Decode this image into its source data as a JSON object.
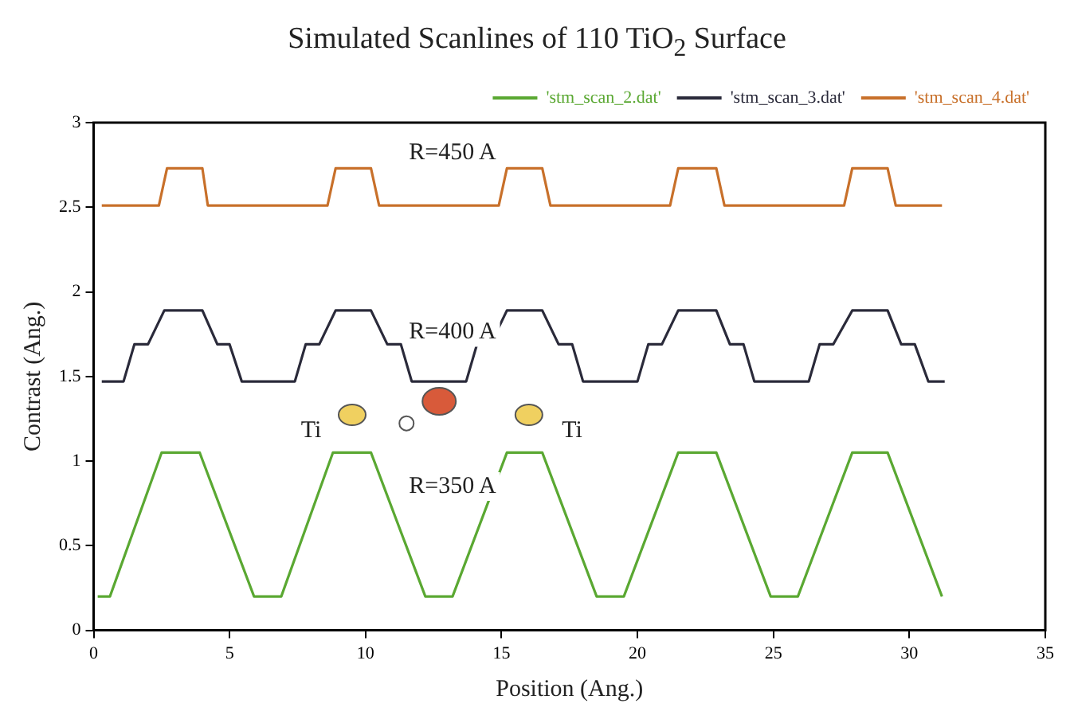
{
  "chart_data": {
    "type": "line",
    "title": "Simulated Scanlines of 110 TiO$_{2}$ Surface",
    "xlabel": "Position (Ang.)",
    "ylabel": "Contrast (Ang.)",
    "xlim": [
      0,
      35
    ],
    "xticks": [
      0,
      5,
      10,
      15,
      20,
      25,
      30,
      35
    ],
    "ylim": [
      0,
      3
    ],
    "yticks": [
      0,
      0.5,
      1,
      1.5,
      2,
      2.5,
      3
    ],
    "grid": false,
    "legend": "top right",
    "marker": "none",
    "line_style": "solid",
    "annotations": [
      "R=450 A",
      "R=400 A",
      "R=350 A",
      "Ti",
      "Ti"
    ],
    "series": [
      {
        "name": "'stm_scan_2.dat'",
        "color": "#5aa832",
        "x": [
          0.15,
          0.6,
          2.5,
          3.9,
          5.9,
          6.9,
          8.8,
          10.2,
          12.2,
          13.2,
          15.2,
          16.5,
          18.5,
          19.5,
          21.5,
          22.9,
          24.9,
          25.9,
          27.9,
          29.2,
          31.2
        ],
        "values": [
          0.2,
          0.2,
          1.05,
          1.05,
          0.2,
          0.2,
          1.05,
          1.05,
          0.2,
          0.2,
          1.05,
          1.05,
          0.2,
          0.2,
          1.05,
          1.05,
          0.2,
          0.2,
          1.05,
          1.05,
          0.2
        ]
      },
      {
        "name": "'stm_scan_3.dat'",
        "color": "#2a2a3a",
        "x": [
          0.3,
          1.1,
          1.5,
          2.0,
          2.6,
          4.0,
          4.55,
          5.0,
          5.45,
          7.4,
          7.8,
          8.3,
          8.9,
          10.2,
          10.8,
          11.3,
          11.7,
          13.7,
          14.1,
          14.6,
          15.2,
          16.5,
          17.1,
          17.6,
          18.0,
          20.0,
          20.4,
          20.9,
          21.5,
          22.9,
          23.4,
          23.9,
          24.3,
          26.3,
          26.7,
          27.2,
          27.9,
          29.2,
          29.7,
          30.2,
          30.7,
          31.3
        ],
        "values": [
          1.47,
          1.47,
          1.69,
          1.69,
          1.89,
          1.89,
          1.69,
          1.69,
          1.47,
          1.47,
          1.69,
          1.69,
          1.89,
          1.89,
          1.69,
          1.69,
          1.47,
          1.47,
          1.69,
          1.69,
          1.89,
          1.89,
          1.69,
          1.69,
          1.47,
          1.47,
          1.69,
          1.69,
          1.89,
          1.89,
          1.69,
          1.69,
          1.47,
          1.47,
          1.69,
          1.69,
          1.89,
          1.89,
          1.69,
          1.69,
          1.47,
          1.47
        ]
      },
      {
        "name": "'stm_scan_4.dat'",
        "color": "#c8702a",
        "x": [
          0.3,
          2.4,
          2.7,
          4.0,
          4.2,
          8.6,
          8.9,
          10.2,
          10.5,
          14.9,
          15.2,
          16.5,
          16.8,
          21.2,
          21.5,
          22.9,
          23.2,
          27.6,
          27.9,
          29.2,
          29.5,
          31.2
        ],
        "values": [
          2.51,
          2.51,
          2.73,
          2.73,
          2.51,
          2.51,
          2.73,
          2.73,
          2.51,
          2.51,
          2.73,
          2.73,
          2.51,
          2.51,
          2.73,
          2.73,
          2.51,
          2.51,
          2.73,
          2.73,
          2.51,
          2.51
        ]
      }
    ]
  }
}
